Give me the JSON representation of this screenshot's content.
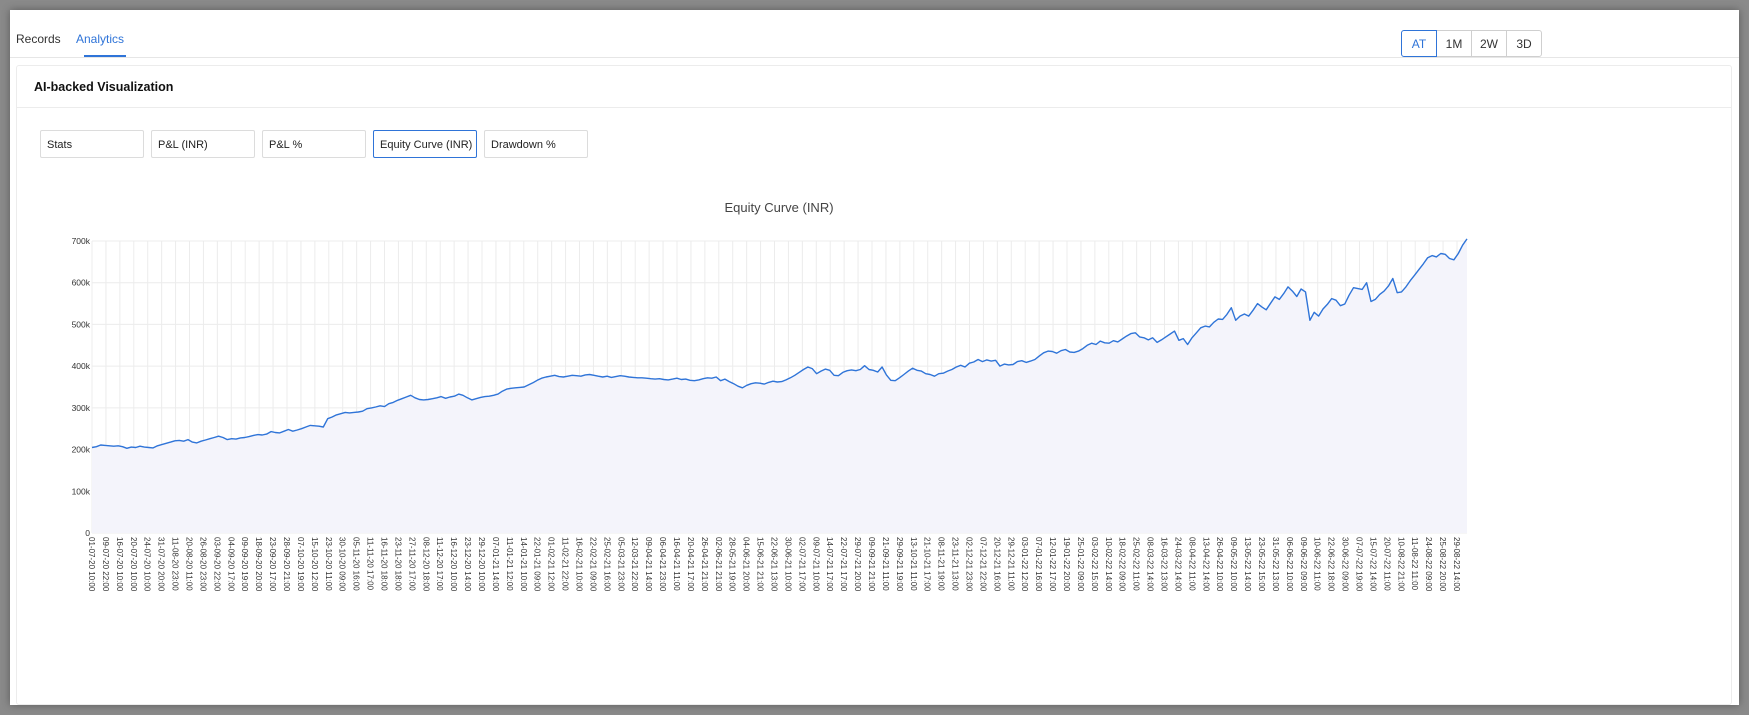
{
  "top_tabs": [
    {
      "label": "Records",
      "active": false
    },
    {
      "label": "Analytics",
      "active": true
    }
  ],
  "range_buttons": [
    {
      "label": "AT",
      "active": true
    },
    {
      "label": "1M",
      "active": false
    },
    {
      "label": "2W",
      "active": false
    },
    {
      "label": "3D",
      "active": false
    }
  ],
  "card": {
    "title": "AI-backed Visualization"
  },
  "chart_tabs": [
    {
      "label": "Stats",
      "active": false
    },
    {
      "label": "P&L (INR)",
      "active": false
    },
    {
      "label": "P&L %",
      "active": false
    },
    {
      "label": "Equity Curve (INR)",
      "active": true
    },
    {
      "label": "Drawdown %",
      "active": false
    }
  ],
  "colors": {
    "accent": "#2f74d8",
    "line": "#2f74d8",
    "area": "#f4f4fb"
  },
  "chart_data": {
    "type": "area",
    "title": "Equity Curve (INR)",
    "xlabel": "",
    "ylabel": "",
    "ylim": [
      0,
      700000
    ],
    "yticks": [
      {
        "value": 0,
        "label": "0"
      },
      {
        "value": 100000,
        "label": "100k"
      },
      {
        "value": 200000,
        "label": "200k"
      },
      {
        "value": 300000,
        "label": "300k"
      },
      {
        "value": 400000,
        "label": "400k"
      },
      {
        "value": 500000,
        "label": "500k"
      },
      {
        "value": 600000,
        "label": "600k"
      },
      {
        "value": 700000,
        "label": "700k"
      }
    ],
    "grid": true,
    "xticks": [
      "01-07-20 10:00",
      "09-07-20 22:00",
      "16-07-20 10:00",
      "20-07-20 10:00",
      "24-07-20 10:00",
      "31-07-20 20:00",
      "11-08-20 23:00",
      "20-08-20 11:00",
      "26-08-20 23:00",
      "03-09-20 22:00",
      "04-09-20 17:00",
      "09-09-20 19:00",
      "18-09-20 20:00",
      "23-09-20 17:00",
      "28-09-20 21:00",
      "07-10-20 19:00",
      "15-10-20 12:00",
      "23-10-20 11:00",
      "30-10-20 09:00",
      "05-11-20 16:00",
      "11-11-20 17:00",
      "16-11-20 18:00",
      "23-11-20 18:00",
      "27-11-20 17:00",
      "08-12-20 18:00",
      "11-12-20 17:00",
      "16-12-20 10:00",
      "23-12-20 14:00",
      "29-12-20 10:00",
      "07-01-21 14:00",
      "11-01-21 12:00",
      "14-01-21 10:00",
      "22-01-21 09:00",
      "01-02-21 12:00",
      "11-02-21 22:00",
      "16-02-21 10:00",
      "22-02-21 09:00",
      "25-02-21 16:00",
      "05-03-21 23:00",
      "12-03-21 22:00",
      "09-04-21 14:00",
      "06-04-21 23:00",
      "16-04-21 11:00",
      "20-04-21 17:00",
      "26-04-21 21:00",
      "02-06-21 21:00",
      "28-05-21 19:00",
      "04-06-21 20:00",
      "15-06-21 21:00",
      "22-06-21 13:00",
      "30-06-21 10:00",
      "02-07-21 17:00",
      "09-07-21 10:00",
      "14-07-21 17:00",
      "22-07-21 17:00",
      "29-07-21 20:00",
      "09-09-21 21:00",
      "21-09-21 11:00",
      "29-09-21 19:00",
      "13-10-21 11:00",
      "21-10-21 17:00",
      "08-11-21 19:00",
      "23-11-21 13:00",
      "02-12-21 23:00",
      "07-12-21 22:00",
      "20-12-21 16:00",
      "29-12-21 11:00",
      "03-01-22 12:00",
      "07-01-22 16:00",
      "12-01-22 17:00",
      "19-01-22 20:00",
      "25-01-22 09:00",
      "03-02-22 15:00",
      "10-02-22 14:00",
      "18-02-22 09:00",
      "25-02-22 11:00",
      "08-03-22 14:00",
      "16-03-22 13:00",
      "24-03-22 14:00",
      "08-04-22 11:00",
      "13-04-22 14:00",
      "26-04-22 10:00",
      "09-05-22 10:00",
      "13-05-22 14:00",
      "23-05-22 15:00",
      "31-05-22 13:00",
      "06-06-22 10:00",
      "09-06-22 09:00",
      "10-06-22 11:00",
      "22-06-22 18:00",
      "30-06-22 09:00",
      "07-07-22 19:00",
      "15-07-22 14:00",
      "20-07-22 11:00",
      "10-08-22 21:00",
      "11-08-22 11:00",
      "24-08-22 09:00",
      "25-08-22 20:00",
      "29-08-22 14:00"
    ],
    "series": [
      {
        "name": "",
        "values": [
          205000,
          207000,
          211000,
          210000,
          209000,
          208000,
          209000,
          207000,
          203000,
          206000,
          205000,
          208000,
          206000,
          205000,
          204000,
          209000,
          212000,
          215000,
          218000,
          221000,
          222000,
          220000,
          224000,
          218000,
          216000,
          220000,
          223000,
          226000,
          229000,
          232000,
          229000,
          224000,
          226000,
          225000,
          228000,
          229000,
          231000,
          234000,
          236000,
          235000,
          237000,
          243000,
          241000,
          240000,
          244000,
          248000,
          244000,
          247000,
          250000,
          254000,
          258000,
          257000,
          256000,
          254000,
          274000,
          278000,
          283000,
          286000,
          289000,
          288000,
          289000,
          290000,
          292000,
          298000,
          300000,
          302000,
          305000,
          303000,
          310000,
          313000,
          318000,
          322000,
          326000,
          330000,
          324000,
          320000,
          319000,
          320000,
          322000,
          324000,
          327000,
          323000,
          326000,
          328000,
          333000,
          330000,
          324000,
          319000,
          322000,
          325000,
          327000,
          328000,
          330000,
          333000,
          340000,
          345000,
          347000,
          348000,
          349000,
          350000,
          355000,
          360000,
          366000,
          371000,
          374000,
          376000,
          378000,
          375000,
          374000,
          376000,
          378000,
          377000,
          376000,
          379000,
          380000,
          378000,
          376000,
          374000,
          376000,
          373000,
          375000,
          377000,
          376000,
          374000,
          373000,
          372000,
          372000,
          371000,
          370000,
          369000,
          370000,
          368000,
          367000,
          369000,
          371000,
          368000,
          369000,
          366000,
          365000,
          367000,
          370000,
          372000,
          371000,
          374000,
          365000,
          369000,
          363000,
          358000,
          352000,
          348000,
          354000,
          358000,
          360000,
          359000,
          357000,
          361000,
          364000,
          362000,
          363000,
          367000,
          372000,
          378000,
          385000,
          392000,
          398000,
          394000,
          382000,
          388000,
          393000,
          390000,
          378000,
          377000,
          385000,
          389000,
          391000,
          389000,
          392000,
          401000,
          392000,
          390000,
          386000,
          398000,
          379000,
          366000,
          365000,
          372000,
          380000,
          388000,
          395000,
          390000,
          388000,
          382000,
          380000,
          376000,
          382000,
          383000,
          388000,
          392000,
          398000,
          402000,
          398000,
          407000,
          410000,
          416000,
          411000,
          415000,
          412000,
          414000,
          400000,
          405000,
          403000,
          404000,
          411000,
          413000,
          409000,
          412000,
          416000,
          424000,
          432000,
          436000,
          435000,
          431000,
          437000,
          440000,
          434000,
          433000,
          436000,
          442000,
          450000,
          455000,
          452000,
          460000,
          456000,
          455000,
          461000,
          458000,
          465000,
          472000,
          478000,
          480000,
          470000,
          468000,
          463000,
          468000,
          457000,
          463000,
          470000,
          477000,
          484000,
          462000,
          466000,
          452000,
          468000,
          480000,
          492000,
          496000,
          494000,
          505000,
          513000,
          512000,
          524000,
          540000,
          510000,
          520000,
          525000,
          520000,
          534000,
          550000,
          542000,
          535000,
          551000,
          566000,
          560000,
          574000,
          590000,
          580000,
          567000,
          585000,
          578000,
          510000,
          529000,
          520000,
          537000,
          548000,
          562000,
          558000,
          545000,
          549000,
          570000,
          588000,
          586000,
          584000,
          600000,
          555000,
          560000,
          572000,
          580000,
          592000,
          610000,
          576000,
          578000,
          590000,
          605000,
          618000,
          632000,
          645000,
          660000,
          665000,
          662000,
          670000,
          668000,
          658000,
          655000,
          670000,
          690000,
          705000
        ]
      }
    ]
  }
}
